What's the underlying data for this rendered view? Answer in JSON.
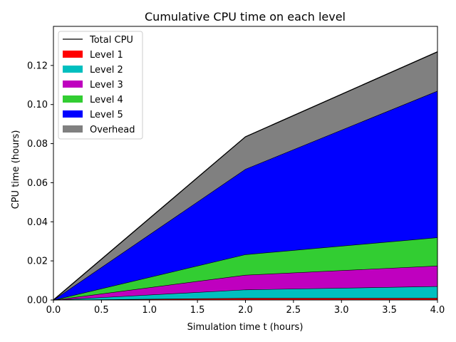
{
  "chart_data": {
    "type": "area",
    "title": "Cumulative CPU time on each level",
    "xlabel": "Simulation time t (hours)",
    "ylabel": "CPU time (hours)",
    "xlim": [
      0.0,
      4.0
    ],
    "ylim": [
      0.0,
      0.14
    ],
    "x_ticks": [
      "0.0",
      "0.5",
      "1.0",
      "1.5",
      "2.0",
      "2.5",
      "3.0",
      "3.5",
      "4.0"
    ],
    "y_ticks": [
      "0.00",
      "0.02",
      "0.04",
      "0.06",
      "0.08",
      "0.10",
      "0.12"
    ],
    "grid": false,
    "legend_position": "top-left",
    "x": [
      0.0,
      2.0,
      4.0
    ],
    "stacked": true,
    "total_line": {
      "name": "Total CPU",
      "color": "#000000",
      "values": [
        0.0,
        0.0835,
        0.127
      ]
    },
    "series": [
      {
        "name": "Level 1",
        "color": "#ff0000",
        "values": [
          0.0,
          0.001,
          0.001
        ]
      },
      {
        "name": "Level 2",
        "color": "#00bfbf",
        "values": [
          0.0,
          0.0043,
          0.006
        ]
      },
      {
        "name": "Level 3",
        "color": "#bf00bf",
        "values": [
          0.0,
          0.0075,
          0.0105
        ]
      },
      {
        "name": "Level 4",
        "color": "#32cd32",
        "values": [
          0.0,
          0.0105,
          0.0145
        ]
      },
      {
        "name": "Level 5",
        "color": "#0000ff",
        "values": [
          0.0,
          0.0437,
          0.075
        ]
      },
      {
        "name": "Overhead",
        "color": "#808080",
        "values": [
          0.0,
          0.0165,
          0.02
        ]
      }
    ]
  }
}
